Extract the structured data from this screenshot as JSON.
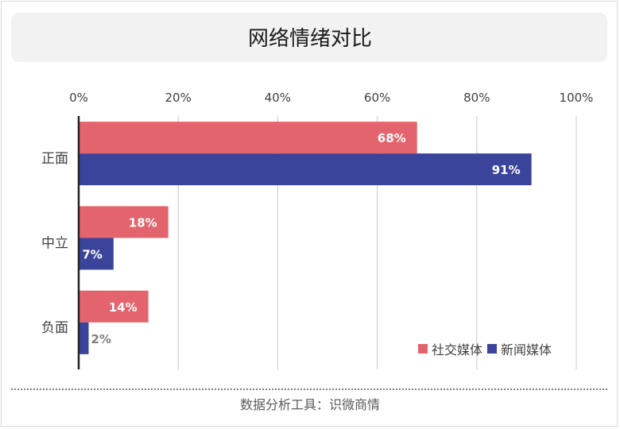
{
  "title": "网络情绪对比",
  "footer": "数据分析工具：识微商情",
  "colors": {
    "social": "#e3646d",
    "news": "#3b449b"
  },
  "legend": [
    {
      "label": "社交媒体",
      "color": "#e3646d"
    },
    {
      "label": "新闻媒体",
      "color": "#3b449b"
    }
  ],
  "chart_data": {
    "type": "bar",
    "orientation": "horizontal",
    "title": "网络情绪对比",
    "categories": [
      "正面",
      "中立",
      "负面"
    ],
    "series": [
      {
        "name": "社交媒体",
        "values": [
          68,
          18,
          14
        ],
        "labels": [
          "68%",
          "18%",
          "14%"
        ],
        "color": "#e3646d"
      },
      {
        "name": "新闻媒体",
        "values": [
          91,
          7,
          2
        ],
        "labels": [
          "91%",
          "7%",
          "2%"
        ],
        "color": "#3b449b"
      }
    ],
    "xlim": [
      0,
      100
    ],
    "xticks": [
      0,
      20,
      40,
      60,
      80,
      100
    ],
    "xtick_labels": [
      "0%",
      "20%",
      "40%",
      "60%",
      "80%",
      "100%"
    ],
    "x_axis_position": "top",
    "grid": true,
    "legend_position": "bottom-right"
  }
}
